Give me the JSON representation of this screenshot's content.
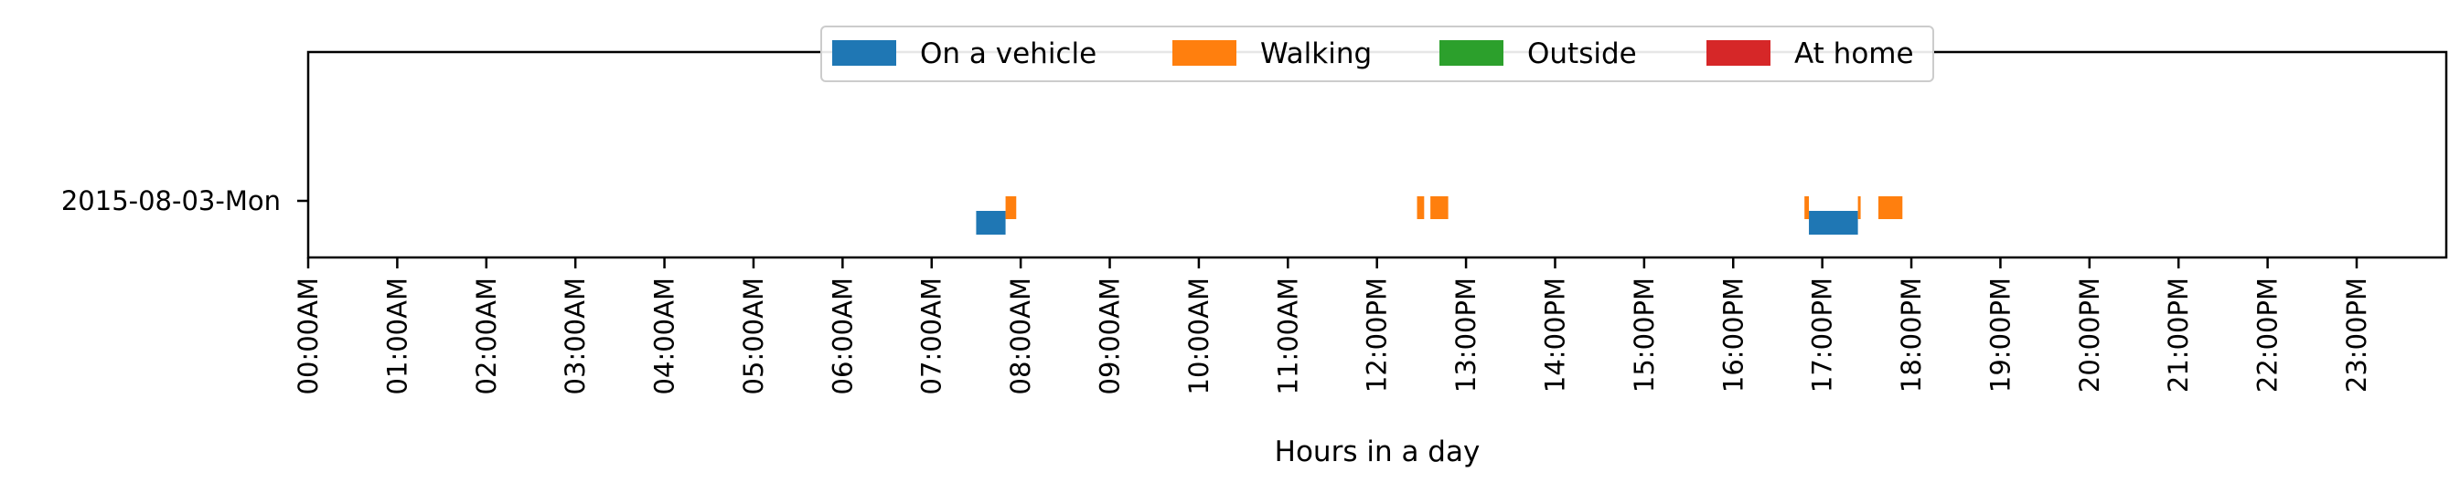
{
  "chart_data": {
    "type": "timeline",
    "title": "",
    "xlabel": "Hours in a day",
    "ylabel": "",
    "xlim": [
      0,
      24
    ],
    "categories": [
      "2015-08-03-Mon"
    ],
    "x_tick_labels": [
      "00:00AM",
      "01:00AM",
      "02:00AM",
      "03:00AM",
      "04:00AM",
      "05:00AM",
      "06:00AM",
      "07:00AM",
      "08:00AM",
      "09:00AM",
      "10:00AM",
      "11:00AM",
      "12:00PM",
      "13:00PM",
      "14:00PM",
      "15:00PM",
      "16:00PM",
      "17:00PM",
      "18:00PM",
      "19:00PM",
      "20:00PM",
      "21:00PM",
      "22:00PM",
      "23:00PM"
    ],
    "legend_position": "upper-center",
    "grid": false,
    "series": [
      {
        "name": "On a vehicle",
        "color": "#1f77b4",
        "lane": 0,
        "segments": [
          [
            7.5,
            7.83
          ],
          [
            16.85,
            17.4
          ]
        ]
      },
      {
        "name": "Walking",
        "color": "#ff7f0e",
        "lane": 1,
        "segments": [
          [
            7.83,
            7.95
          ],
          [
            12.45,
            12.53
          ],
          [
            12.6,
            12.8
          ],
          [
            16.8,
            16.85
          ],
          [
            17.4,
            17.43
          ],
          [
            17.63,
            17.9
          ]
        ]
      },
      {
        "name": "Outside",
        "color": "#2ca02c",
        "lane": 2,
        "segments": []
      },
      {
        "name": "At home",
        "color": "#d62728",
        "lane": 3,
        "segments": []
      }
    ]
  }
}
